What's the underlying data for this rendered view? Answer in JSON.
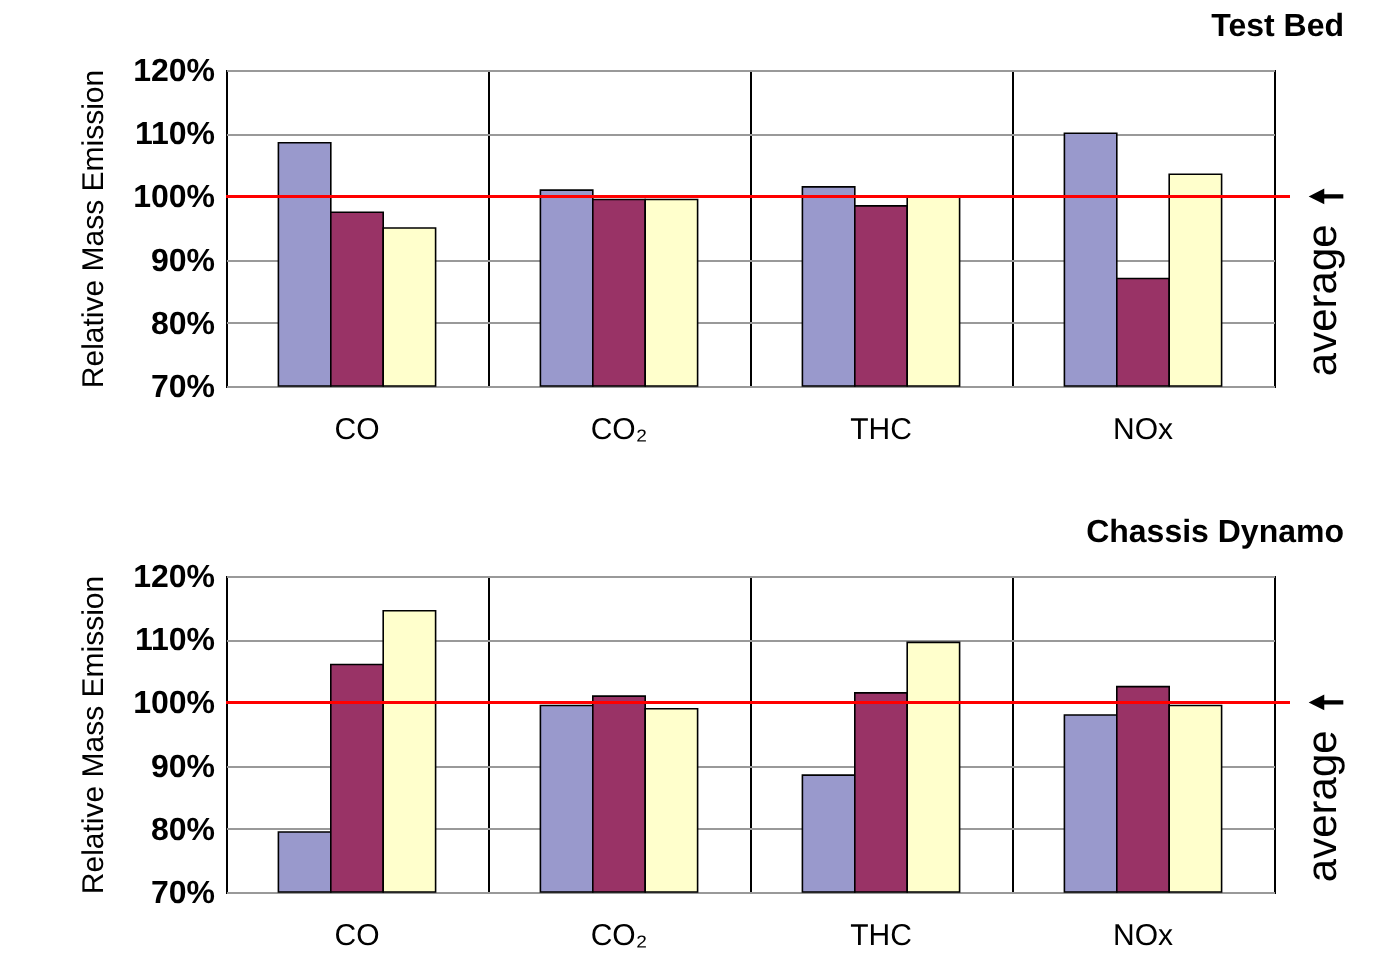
{
  "chart_data": [
    {
      "type": "bar",
      "title": "Test Bed",
      "ylabel": "Relative Mass Emission",
      "categories": [
        "CO",
        "CO₂",
        "THC",
        "NOx"
      ],
      "series": [
        {
          "color": "#9999cc",
          "values": [
            108.5,
            101,
            101.5,
            110
          ]
        },
        {
          "color": "#993366",
          "values": [
            97.5,
            99.5,
            98.5,
            87
          ]
        },
        {
          "color": "#ffffcc",
          "values": [
            95,
            99.5,
            100,
            103.5
          ]
        }
      ],
      "ylim": [
        70,
        120
      ],
      "yticks": [
        {
          "value": 70,
          "label": "70%"
        },
        {
          "value": 80,
          "label": "80%"
        },
        {
          "value": 90,
          "label": "90%"
        },
        {
          "value": 100,
          "label": "100%"
        },
        {
          "value": 110,
          "label": "110%"
        },
        {
          "value": 120,
          "label": "120%"
        }
      ],
      "grid": true,
      "ref_lines": [
        {
          "axis": "y",
          "value": 100,
          "label": "average",
          "color": "#ff0000"
        }
      ]
    },
    {
      "type": "bar",
      "title": "Chassis Dynamo",
      "ylabel": "Relative Mass Emission",
      "categories": [
        "CO",
        "CO₂",
        "THC",
        "NOx"
      ],
      "series": [
        {
          "color": "#9999cc",
          "values": [
            79.5,
            99.5,
            88.5,
            98
          ]
        },
        {
          "color": "#993366",
          "values": [
            106,
            101,
            101.5,
            102.5
          ]
        },
        {
          "color": "#ffffcc",
          "values": [
            114.5,
            99,
            109.5,
            99.5
          ]
        }
      ],
      "ylim": [
        70,
        120
      ],
      "yticks": [
        {
          "value": 70,
          "label": "70%"
        },
        {
          "value": 80,
          "label": "80%"
        },
        {
          "value": 90,
          "label": "90%"
        },
        {
          "value": 100,
          "label": "100%"
        },
        {
          "value": 110,
          "label": "110%"
        },
        {
          "value": 120,
          "label": "120%"
        }
      ],
      "grid": true,
      "ref_lines": [
        {
          "axis": "y",
          "value": 100,
          "label": "average",
          "color": "#ff0000"
        }
      ]
    }
  ]
}
